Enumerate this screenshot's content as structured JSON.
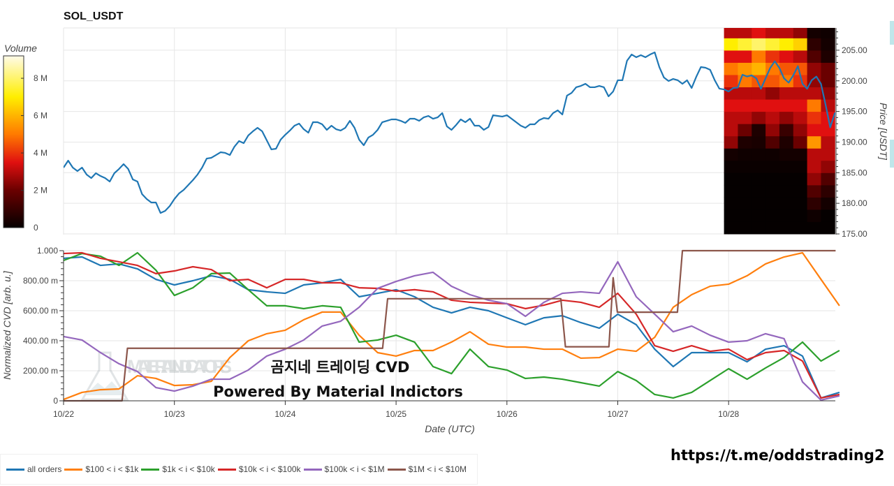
{
  "chart_data": [
    {
      "type": "line",
      "title": "SOL_USDT",
      "ylabel": "Price [USDT]",
      "ylim": [
        175,
        208.7
      ],
      "yticks": [
        "175.00",
        "180.00",
        "185.00",
        "190.00",
        "195.00",
        "200.00",
        "205.00"
      ],
      "xticks": [
        "10/22",
        "10/23",
        "10/24",
        "10/25",
        "10/26",
        "10/27",
        "10/28"
      ],
      "grid": true,
      "series": [
        {
          "color": "#1f77b4",
          "x_start": "10/22 00:00",
          "x_interval_hours": 1,
          "values": [
            185.83,
            186.97,
            185.83,
            185.26,
            185.83,
            184.69,
            184.12,
            184.92,
            184.46,
            184.12,
            183.55,
            184.92,
            185.6,
            186.4,
            185.6,
            183.89,
            183.55,
            181.5,
            180.7,
            180.13,
            180.13,
            178.42,
            178.76,
            179.56,
            180.7,
            181.61,
            182.18,
            182.98,
            183.78,
            184.69,
            185.83,
            187.31,
            187.43,
            187.88,
            188.34,
            188.23,
            187.88,
            189.25,
            190.17,
            189.82,
            191.08,
            191.76,
            192.33,
            191.76,
            190.28,
            188.8,
            188.91,
            190.39,
            191.19,
            191.88,
            192.67,
            193.02,
            192.1,
            191.53,
            193.24,
            193.24,
            192.9,
            191.99,
            192.67,
            192.1,
            191.88,
            192.33,
            193.47,
            192.33,
            190.39,
            189.48,
            190.74,
            191.19,
            191.99,
            193.24,
            193.47,
            193.7,
            193.7,
            193.47,
            193.13,
            193.81,
            193.81,
            193.47,
            194.04,
            194.27,
            193.81,
            194.04,
            194.73,
            192.56,
            191.99,
            192.79,
            193.7,
            193.24,
            193.81,
            192.67,
            192.67,
            191.99,
            192.45,
            194.38,
            194.27,
            194.16,
            194.38,
            193.81,
            193.24,
            192.67,
            192.33,
            192.9,
            192.9,
            193.59,
            193.93,
            193.81,
            194.73,
            195.18,
            194.5,
            197.58,
            198.03,
            198.95,
            199.17,
            199.52,
            198.95,
            198.95,
            199.17,
            198.95,
            197.46,
            198.26,
            200.09,
            200.09,
            203.28,
            204.3,
            203.85,
            204.19,
            203.85,
            204.3,
            204.65,
            202.25,
            200.54,
            199.97,
            200.31,
            200.09,
            199.52,
            200.09,
            198.83,
            200.66,
            202.25,
            202.14,
            201.8,
            200.09,
            198.72,
            198.6,
            198.26,
            198.83,
            198.9,
            201.0,
            200.7,
            200.9,
            200.4,
            198.7,
            200.4,
            202.1,
            203.2,
            202.1,
            200.4,
            199.7,
            200.9,
            202.4,
            199.5,
            198.7,
            200.1,
            200.7,
            199.5,
            196.1,
            192.4,
            194.7,
            194.9
          ]
        }
      ],
      "heatmap": {
        "title": "Volume",
        "unit": "M",
        "x_start": "10/27 23:00",
        "column_hours": 3,
        "price_bin_start": 175,
        "price_bin_size": 2,
        "colorbar_ticks": [
          "0",
          "2 M",
          "4 M",
          "6 M",
          "8 M"
        ],
        "zmax": 9.2,
        "colorscale": [
          [
            0,
            "#050000"
          ],
          [
            2,
            "#6a0000"
          ],
          [
            3.5,
            "#e01010"
          ],
          [
            5,
            "#ff7a00"
          ],
          [
            7,
            "#ffee00"
          ],
          [
            9.2,
            "#fffbea"
          ]
        ],
        "z": [
          [
            0,
            0,
            0,
            0,
            0,
            0,
            0,
            0
          ],
          [
            0,
            0,
            0,
            0,
            0,
            0,
            0.2,
            0
          ],
          [
            0,
            0,
            0,
            0,
            0,
            0,
            0.8,
            0.3
          ],
          [
            0,
            0,
            0,
            0,
            0,
            0,
            1.5,
            0.8
          ],
          [
            0,
            0,
            0,
            0,
            0,
            0,
            2.5,
            1.5
          ],
          [
            0.1,
            0.1,
            0.1,
            0.1,
            0.1,
            0.1,
            3,
            2.5
          ],
          [
            0.3,
            0.2,
            0.2,
            0.2,
            0.3,
            0.3,
            3,
            3
          ],
          [
            2.5,
            0.5,
            0.4,
            1.5,
            0.5,
            2,
            5.5,
            3
          ],
          [
            3,
            2,
            0.5,
            2.5,
            1,
            2.5,
            3.5,
            3.5
          ],
          [
            3,
            3,
            2.5,
            3,
            2.5,
            3,
            4,
            3.5
          ],
          [
            3.5,
            3.5,
            3.5,
            3.5,
            3.5,
            3.5,
            5,
            3
          ],
          [
            3,
            3,
            3,
            2.5,
            3,
            3,
            3,
            2.5
          ],
          [
            4,
            5,
            4.5,
            4.5,
            5,
            4,
            2.5,
            2
          ],
          [
            5,
            5.5,
            6,
            5,
            4.5,
            4.5,
            2.5,
            2
          ],
          [
            3.5,
            3.5,
            5,
            4,
            3.5,
            3,
            1.5,
            0.5
          ],
          [
            7,
            7.5,
            8,
            7.5,
            7,
            6.5,
            0.8,
            0.3
          ],
          [
            3,
            3,
            3.5,
            3,
            3,
            2.5,
            0.3,
            0.2
          ]
        ]
      }
    },
    {
      "type": "line",
      "xlabel": "Date (UTC)",
      "ylabel": "Normalized CVD [arb. u.]",
      "ylim": [
        0,
        1
      ],
      "yticks": [
        [
          0,
          "0"
        ],
        [
          0.2,
          "200.00 m"
        ],
        [
          0.4,
          "400.00 m"
        ],
        [
          0.6,
          "600.00 m"
        ],
        [
          0.8,
          "800.00 m"
        ],
        [
          1,
          "1.000"
        ]
      ],
      "xticks": [
        "10/22",
        "10/23",
        "10/24",
        "10/25",
        "10/26",
        "10/27",
        "10/28"
      ],
      "grid": true,
      "legend_placement": "bottom-left",
      "x_start": "10/22 00:00",
      "x_interval_hours": 4,
      "series": [
        {
          "name": "all orders",
          "color": "#1f77b4",
          "values": [
            0.949,
            0.958,
            0.902,
            0.912,
            0.879,
            0.809,
            0.772,
            0.8,
            0.833,
            0.809,
            0.74,
            0.726,
            0.716,
            0.772,
            0.786,
            0.809,
            0.693,
            0.716,
            0.74,
            0.693,
            0.623,
            0.586,
            0.623,
            0.6,
            0.553,
            0.507,
            0.553,
            0.567,
            0.521,
            0.484,
            0.577,
            0.507,
            0.344,
            0.228,
            0.321,
            0.321,
            0.321,
            0.26,
            0.344,
            0.367,
            0.298,
            0.019,
            0.056
          ]
        },
        {
          "name": "$100 < i < $1k",
          "color": "#ff7f0e",
          "values": [
            0.009,
            0.056,
            0.074,
            0.079,
            0.167,
            0.149,
            0.102,
            0.107,
            0.13,
            0.288,
            0.4,
            0.447,
            0.47,
            0.54,
            0.591,
            0.591,
            0.437,
            0.321,
            0.298,
            0.335,
            0.335,
            0.391,
            0.46,
            0.377,
            0.358,
            0.358,
            0.344,
            0.344,
            0.284,
            0.288,
            0.344,
            0.33,
            0.423,
            0.623,
            0.707,
            0.763,
            0.777,
            0.833,
            0.912,
            0.958,
            0.986,
            0.809,
            0.633
          ]
        },
        {
          "name": "$1k < i < $10k",
          "color": "#2ca02c",
          "values": [
            0.935,
            0.981,
            0.963,
            0.902,
            0.986,
            0.87,
            0.702,
            0.753,
            0.847,
            0.851,
            0.74,
            0.633,
            0.633,
            0.614,
            0.633,
            0.623,
            0.391,
            0.405,
            0.437,
            0.391,
            0.228,
            0.181,
            0.344,
            0.228,
            0.205,
            0.149,
            0.158,
            0.144,
            0.121,
            0.098,
            0.195,
            0.135,
            0.042,
            0.019,
            0.056,
            0.135,
            0.214,
            0.144,
            0.219,
            0.288,
            0.391,
            0.265,
            0.335
          ]
        },
        {
          "name": "$10k < i < $100k",
          "color": "#d62728",
          "values": [
            0.981,
            0.986,
            0.949,
            0.926,
            0.902,
            0.847,
            0.865,
            0.893,
            0.874,
            0.8,
            0.809,
            0.753,
            0.809,
            0.809,
            0.786,
            0.786,
            0.753,
            0.749,
            0.73,
            0.74,
            0.726,
            0.67,
            0.656,
            0.651,
            0.647,
            0.614,
            0.637,
            0.67,
            0.656,
            0.623,
            0.716,
            0.577,
            0.367,
            0.33,
            0.367,
            0.33,
            0.344,
            0.274,
            0.321,
            0.335,
            0.265,
            0.019,
            0.042
          ]
        },
        {
          "name": "$100k < i < $1M",
          "color": "#9467bd",
          "values": [
            0.428,
            0.405,
            0.321,
            0.247,
            0.195,
            0.088,
            0.065,
            0.098,
            0.144,
            0.144,
            0.205,
            0.298,
            0.344,
            0.405,
            0.498,
            0.53,
            0.623,
            0.749,
            0.795,
            0.833,
            0.856,
            0.763,
            0.707,
            0.67,
            0.647,
            0.563,
            0.656,
            0.716,
            0.726,
            0.716,
            0.926,
            0.693,
            0.577,
            0.46,
            0.498,
            0.437,
            0.391,
            0.4,
            0.447,
            0.414,
            0.126,
            0.005,
            0.033
          ]
        },
        {
          "name": "$1M < i < $10M",
          "color": "#8c564b",
          "points": [
            [
              "10/22 00:00",
              0
            ],
            [
              "10/22 12:40",
              0
            ],
            [
              "10/22 13:50",
              0.35
            ],
            [
              "10/24 21:05",
              0.35
            ],
            [
              "10/24 22:10",
              0.68
            ],
            [
              "10/26 11:40",
              0.68
            ],
            [
              "10/26 12:40",
              0.36
            ],
            [
              "10/26 22:05",
              0.36
            ],
            [
              "10/26 23:00",
              0.82
            ],
            [
              "10/26 23:55",
              0.59
            ],
            [
              "10/27 12:55",
              0.59
            ],
            [
              "10/27 14:00",
              1.0
            ],
            [
              "10/28 23:10",
              1.0
            ]
          ]
        }
      ]
    }
  ],
  "watermark": {
    "line1": "곰지네 트레이딩 CVD",
    "line2": "Powered By Material Indictors",
    "logo_text": "MATERIAL INDICATORS"
  },
  "footer_link": "https://t.me/oddstrading2"
}
